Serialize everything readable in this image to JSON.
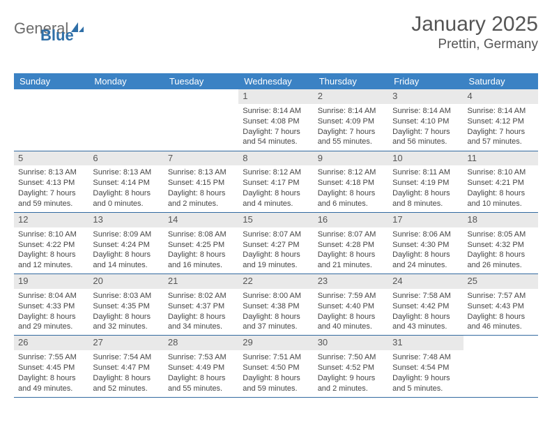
{
  "logo": {
    "text1": "General",
    "text2": "Blue"
  },
  "title": {
    "month": "January 2025",
    "location": "Prettin, Germany"
  },
  "colors": {
    "header_bg": "#3b82c4",
    "header_text": "#ffffff",
    "row_border": "#3169a0",
    "daynum_bg": "#e9e9e9",
    "body_text": "#444444",
    "title_text": "#555555",
    "logo_gray": "#6b6b6b",
    "logo_blue": "#2f6fa7",
    "page_bg": "#ffffff"
  },
  "weekdays": [
    "Sunday",
    "Monday",
    "Tuesday",
    "Wednesday",
    "Thursday",
    "Friday",
    "Saturday"
  ],
  "weeks": [
    [
      {
        "n": "",
        "sunrise": "",
        "sunset": "",
        "day": ""
      },
      {
        "n": "",
        "sunrise": "",
        "sunset": "",
        "day": ""
      },
      {
        "n": "",
        "sunrise": "",
        "sunset": "",
        "day": ""
      },
      {
        "n": "1",
        "sunrise": "Sunrise: 8:14 AM",
        "sunset": "Sunset: 4:08 PM",
        "day": "Daylight: 7 hours and 54 minutes."
      },
      {
        "n": "2",
        "sunrise": "Sunrise: 8:14 AM",
        "sunset": "Sunset: 4:09 PM",
        "day": "Daylight: 7 hours and 55 minutes."
      },
      {
        "n": "3",
        "sunrise": "Sunrise: 8:14 AM",
        "sunset": "Sunset: 4:10 PM",
        "day": "Daylight: 7 hours and 56 minutes."
      },
      {
        "n": "4",
        "sunrise": "Sunrise: 8:14 AM",
        "sunset": "Sunset: 4:12 PM",
        "day": "Daylight: 7 hours and 57 minutes."
      }
    ],
    [
      {
        "n": "5",
        "sunrise": "Sunrise: 8:13 AM",
        "sunset": "Sunset: 4:13 PM",
        "day": "Daylight: 7 hours and 59 minutes."
      },
      {
        "n": "6",
        "sunrise": "Sunrise: 8:13 AM",
        "sunset": "Sunset: 4:14 PM",
        "day": "Daylight: 8 hours and 0 minutes."
      },
      {
        "n": "7",
        "sunrise": "Sunrise: 8:13 AM",
        "sunset": "Sunset: 4:15 PM",
        "day": "Daylight: 8 hours and 2 minutes."
      },
      {
        "n": "8",
        "sunrise": "Sunrise: 8:12 AM",
        "sunset": "Sunset: 4:17 PM",
        "day": "Daylight: 8 hours and 4 minutes."
      },
      {
        "n": "9",
        "sunrise": "Sunrise: 8:12 AM",
        "sunset": "Sunset: 4:18 PM",
        "day": "Daylight: 8 hours and 6 minutes."
      },
      {
        "n": "10",
        "sunrise": "Sunrise: 8:11 AM",
        "sunset": "Sunset: 4:19 PM",
        "day": "Daylight: 8 hours and 8 minutes."
      },
      {
        "n": "11",
        "sunrise": "Sunrise: 8:10 AM",
        "sunset": "Sunset: 4:21 PM",
        "day": "Daylight: 8 hours and 10 minutes."
      }
    ],
    [
      {
        "n": "12",
        "sunrise": "Sunrise: 8:10 AM",
        "sunset": "Sunset: 4:22 PM",
        "day": "Daylight: 8 hours and 12 minutes."
      },
      {
        "n": "13",
        "sunrise": "Sunrise: 8:09 AM",
        "sunset": "Sunset: 4:24 PM",
        "day": "Daylight: 8 hours and 14 minutes."
      },
      {
        "n": "14",
        "sunrise": "Sunrise: 8:08 AM",
        "sunset": "Sunset: 4:25 PM",
        "day": "Daylight: 8 hours and 16 minutes."
      },
      {
        "n": "15",
        "sunrise": "Sunrise: 8:07 AM",
        "sunset": "Sunset: 4:27 PM",
        "day": "Daylight: 8 hours and 19 minutes."
      },
      {
        "n": "16",
        "sunrise": "Sunrise: 8:07 AM",
        "sunset": "Sunset: 4:28 PM",
        "day": "Daylight: 8 hours and 21 minutes."
      },
      {
        "n": "17",
        "sunrise": "Sunrise: 8:06 AM",
        "sunset": "Sunset: 4:30 PM",
        "day": "Daylight: 8 hours and 24 minutes."
      },
      {
        "n": "18",
        "sunrise": "Sunrise: 8:05 AM",
        "sunset": "Sunset: 4:32 PM",
        "day": "Daylight: 8 hours and 26 minutes."
      }
    ],
    [
      {
        "n": "19",
        "sunrise": "Sunrise: 8:04 AM",
        "sunset": "Sunset: 4:33 PM",
        "day": "Daylight: 8 hours and 29 minutes."
      },
      {
        "n": "20",
        "sunrise": "Sunrise: 8:03 AM",
        "sunset": "Sunset: 4:35 PM",
        "day": "Daylight: 8 hours and 32 minutes."
      },
      {
        "n": "21",
        "sunrise": "Sunrise: 8:02 AM",
        "sunset": "Sunset: 4:37 PM",
        "day": "Daylight: 8 hours and 34 minutes."
      },
      {
        "n": "22",
        "sunrise": "Sunrise: 8:00 AM",
        "sunset": "Sunset: 4:38 PM",
        "day": "Daylight: 8 hours and 37 minutes."
      },
      {
        "n": "23",
        "sunrise": "Sunrise: 7:59 AM",
        "sunset": "Sunset: 4:40 PM",
        "day": "Daylight: 8 hours and 40 minutes."
      },
      {
        "n": "24",
        "sunrise": "Sunrise: 7:58 AM",
        "sunset": "Sunset: 4:42 PM",
        "day": "Daylight: 8 hours and 43 minutes."
      },
      {
        "n": "25",
        "sunrise": "Sunrise: 7:57 AM",
        "sunset": "Sunset: 4:43 PM",
        "day": "Daylight: 8 hours and 46 minutes."
      }
    ],
    [
      {
        "n": "26",
        "sunrise": "Sunrise: 7:55 AM",
        "sunset": "Sunset: 4:45 PM",
        "day": "Daylight: 8 hours and 49 minutes."
      },
      {
        "n": "27",
        "sunrise": "Sunrise: 7:54 AM",
        "sunset": "Sunset: 4:47 PM",
        "day": "Daylight: 8 hours and 52 minutes."
      },
      {
        "n": "28",
        "sunrise": "Sunrise: 7:53 AM",
        "sunset": "Sunset: 4:49 PM",
        "day": "Daylight: 8 hours and 55 minutes."
      },
      {
        "n": "29",
        "sunrise": "Sunrise: 7:51 AM",
        "sunset": "Sunset: 4:50 PM",
        "day": "Daylight: 8 hours and 59 minutes."
      },
      {
        "n": "30",
        "sunrise": "Sunrise: 7:50 AM",
        "sunset": "Sunset: 4:52 PM",
        "day": "Daylight: 9 hours and 2 minutes."
      },
      {
        "n": "31",
        "sunrise": "Sunrise: 7:48 AM",
        "sunset": "Sunset: 4:54 PM",
        "day": "Daylight: 9 hours and 5 minutes."
      },
      {
        "n": "",
        "sunrise": "",
        "sunset": "",
        "day": ""
      }
    ]
  ]
}
